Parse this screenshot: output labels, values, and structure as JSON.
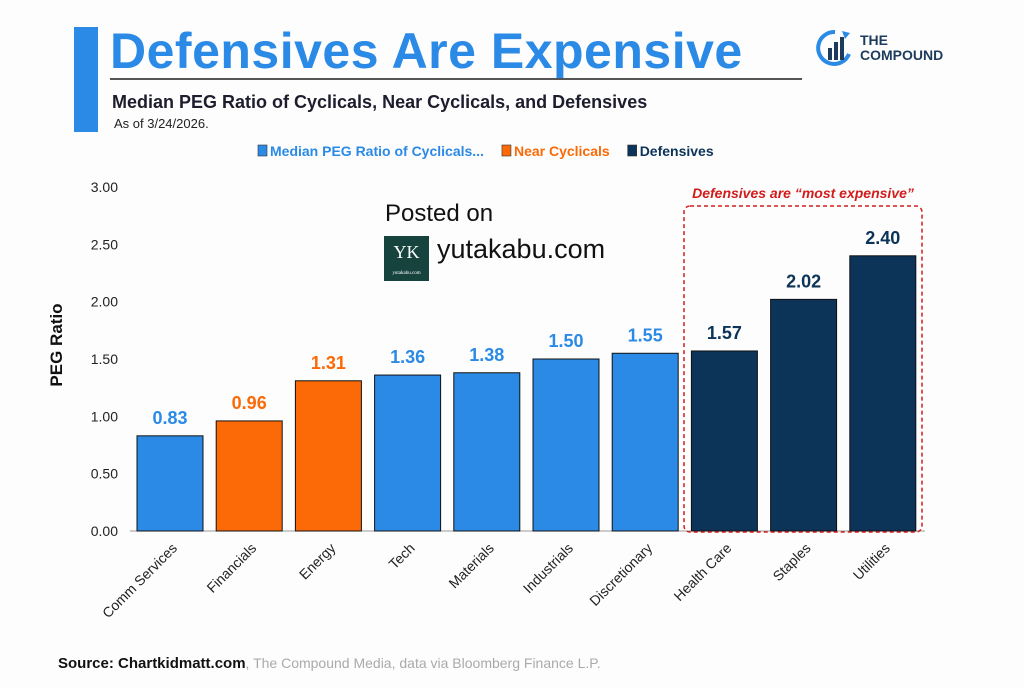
{
  "header": {
    "title": "Defensives Are Expensive",
    "subtitle": "Median PEG Ratio of Cyclicals, Near Cyclicals, and Defensives",
    "as_of": "As of 3/24/2026."
  },
  "logo": {
    "line1": "THE",
    "line2": "COMPOUND"
  },
  "watermark": {
    "posted": "Posted on",
    "site": "yutakabu.com",
    "logo_letters": "YK",
    "logo_small": "yutakabu.com"
  },
  "footer": {
    "source_bold": "Source: Chartkidmatt.com",
    "source_rest": ", The Compound Media, data via Bloomberg Finance L.P."
  },
  "colors": {
    "cyclical": "#2a8ae6",
    "near": "#fb6a07",
    "defensive": "#0c3358"
  },
  "chart_data": {
    "type": "bar",
    "title": "Defensives Are Expensive",
    "ylabel": "PEG Ratio",
    "xlabel": "",
    "ylim": [
      0,
      3
    ],
    "yticks": [
      "0.00",
      "0.50",
      "1.00",
      "1.50",
      "2.00",
      "2.50",
      "3.00"
    ],
    "categories": [
      "Comm Services",
      "Financials",
      "Energy",
      "Tech",
      "Materials",
      "Industrials",
      "Discretionary",
      "Health Care",
      "Staples",
      "Utilities"
    ],
    "values": [
      0.83,
      0.96,
      1.31,
      1.36,
      1.38,
      1.5,
      1.55,
      1.57,
      2.02,
      2.4
    ],
    "labels": [
      "0.83",
      "0.96",
      "1.31",
      "1.36",
      "1.38",
      "1.50",
      "1.55",
      "1.57",
      "2.02",
      "2.40"
    ],
    "groups": [
      "cyclical",
      "near",
      "near",
      "cyclical",
      "cyclical",
      "cyclical",
      "cyclical",
      "defensive",
      "defensive",
      "defensive"
    ],
    "legend": [
      {
        "key": "cyclical",
        "label": "Median PEG Ratio of Cyclicals..."
      },
      {
        "key": "near",
        "label": "Near Cyclicals"
      },
      {
        "key": "defensive",
        "label": "Defensives"
      }
    ],
    "legend_position": "top-center",
    "annotation": "Defensives are “most expensive”"
  }
}
